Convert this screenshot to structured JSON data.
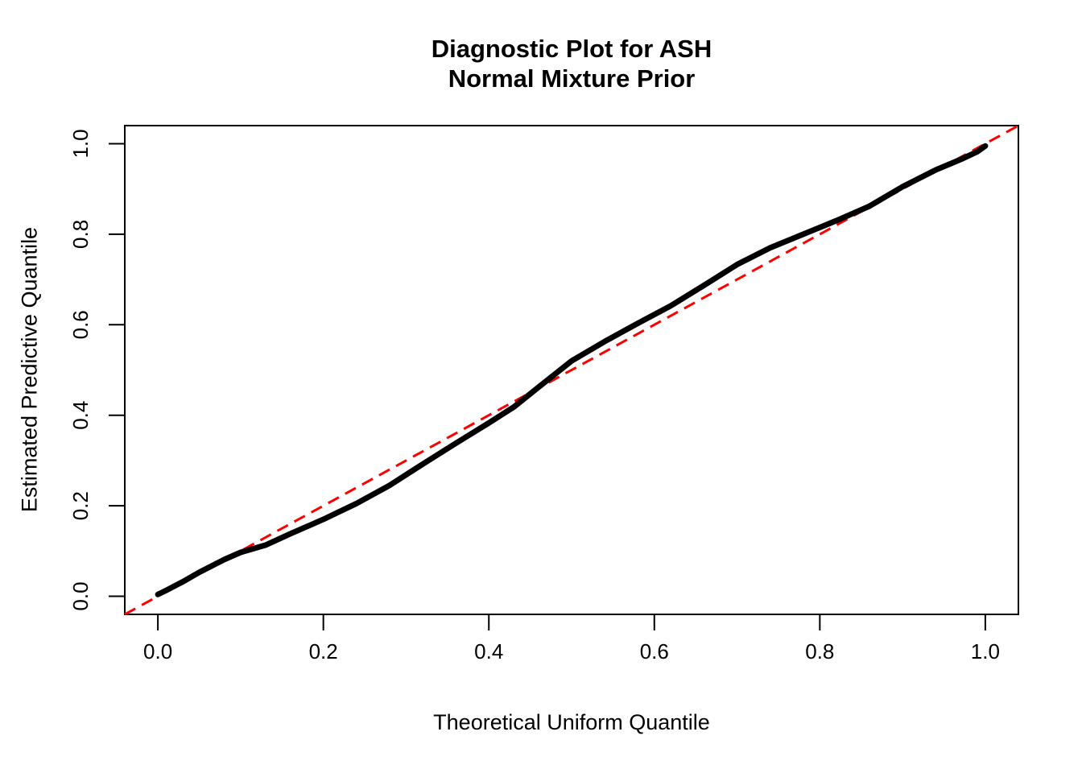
{
  "chart_data": {
    "type": "line",
    "title": "Diagnostic Plot for ASH\nNormal Mixture Prior",
    "xlabel": "Theoretical Uniform Quantile",
    "ylabel": "Estimated Predictive Quantile",
    "xlim": [
      -0.04,
      1.04
    ],
    "ylim": [
      -0.04,
      1.04
    ],
    "grid": false,
    "legend": null,
    "xticks": {
      "labels": [
        "0.0",
        "0.2",
        "0.4",
        "0.6",
        "0.8",
        "1.0"
      ],
      "values": [
        0.0,
        0.2,
        0.4,
        0.6,
        0.8,
        1.0
      ]
    },
    "yticks": {
      "labels": [
        "0.0",
        "0.2",
        "0.4",
        "0.6",
        "0.8",
        "1.0"
      ],
      "values": [
        0.0,
        0.2,
        0.4,
        0.6,
        0.8,
        1.0
      ]
    },
    "colors": {
      "curve": "#000000",
      "reference": "#FF0000",
      "background": "#FFFFFF",
      "axis": "#000000"
    },
    "series": [
      {
        "name": "estimated-predictive-quantile-curve",
        "style": "solid-thick",
        "color": "#000000",
        "points": [
          [
            0.0,
            0.004
          ],
          [
            0.01,
            0.013
          ],
          [
            0.03,
            0.032
          ],
          [
            0.05,
            0.053
          ],
          [
            0.08,
            0.081
          ],
          [
            0.1,
            0.097
          ],
          [
            0.13,
            0.113
          ],
          [
            0.16,
            0.138
          ],
          [
            0.2,
            0.17
          ],
          [
            0.24,
            0.205
          ],
          [
            0.28,
            0.245
          ],
          [
            0.32,
            0.292
          ],
          [
            0.36,
            0.338
          ],
          [
            0.4,
            0.383
          ],
          [
            0.43,
            0.418
          ],
          [
            0.46,
            0.462
          ],
          [
            0.5,
            0.52
          ],
          [
            0.54,
            0.563
          ],
          [
            0.58,
            0.603
          ],
          [
            0.62,
            0.642
          ],
          [
            0.66,
            0.687
          ],
          [
            0.7,
            0.733
          ],
          [
            0.74,
            0.77
          ],
          [
            0.78,
            0.8
          ],
          [
            0.82,
            0.83
          ],
          [
            0.86,
            0.862
          ],
          [
            0.9,
            0.905
          ],
          [
            0.94,
            0.942
          ],
          [
            0.97,
            0.965
          ],
          [
            0.99,
            0.982
          ],
          [
            1.0,
            0.995
          ]
        ]
      },
      {
        "name": "reference-diagonal-y-equals-x",
        "style": "dashed",
        "color": "#FF0000",
        "points": [
          [
            -0.04,
            -0.04
          ],
          [
            1.04,
            1.04
          ]
        ]
      }
    ]
  }
}
